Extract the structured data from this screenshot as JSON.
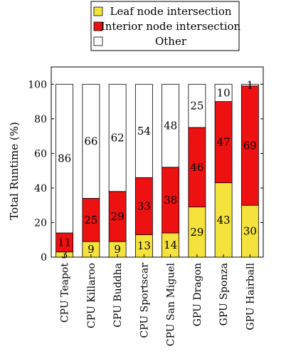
{
  "chart_data": {
    "type": "bar",
    "stacked": true,
    "categories": [
      "CPU Teapot",
      "CPU Killaroo",
      "CPU Buddha",
      "CPU Sportscar",
      "CPU San Miguel",
      "GPU Dragon",
      "GPU Sponza",
      "GPU Hairball"
    ],
    "series": [
      {
        "name": "Leaf node intersection",
        "color": "#f5e23c",
        "values": [
          3,
          9,
          9,
          13,
          14,
          29,
          43,
          30
        ]
      },
      {
        "name": "Interior node intersection",
        "color": "#ee1111",
        "values": [
          11,
          25,
          29,
          33,
          38,
          46,
          47,
          69
        ]
      },
      {
        "name": "Other",
        "color": "#ffffff",
        "values": [
          86,
          66,
          62,
          54,
          48,
          25,
          10,
          1
        ]
      }
    ],
    "xlabel": "",
    "ylabel": "Total Runtime (%)",
    "ylim": [
      0,
      110
    ],
    "yticks": [
      0,
      20,
      40,
      60,
      80,
      100
    ],
    "legend_position": "top",
    "grid": false
  }
}
